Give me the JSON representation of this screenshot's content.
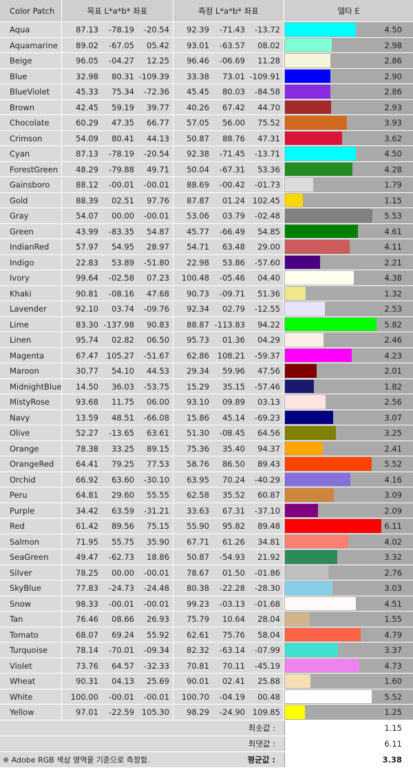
{
  "header": {
    "col_name": "Color Patch",
    "col_target": "목표 L*a*b* 좌표",
    "col_measured": "측정 L*a*b* 좌표",
    "col_delta": "델타 E"
  },
  "chart_data": {
    "type": "table",
    "x_max": 6.11,
    "rows": [
      {
        "name": "Aqua",
        "color": "#00FFFF",
        "target": [
          "87.13",
          "-78.19",
          "-20.54"
        ],
        "measured": [
          "92.39",
          "-71.43",
          "-13.72"
        ],
        "delta_e": 4.5,
        "delta_e_label": "4.50"
      },
      {
        "name": "Aquamarine",
        "color": "#7FFFD4",
        "target": [
          "89.02",
          "-67.05",
          "05.42"
        ],
        "measured": [
          "93.01",
          "-63.57",
          "08.02"
        ],
        "delta_e": 2.98,
        "delta_e_label": "2.98"
      },
      {
        "name": "Beige",
        "color": "#F5F5DC",
        "target": [
          "96.05",
          "-04.27",
          "12.25"
        ],
        "measured": [
          "96.46",
          "-06.69",
          "11.28"
        ],
        "delta_e": 2.86,
        "delta_e_label": "2.86"
      },
      {
        "name": "Blue",
        "color": "#0000FF",
        "target": [
          "32.98",
          "80.31",
          "-109.39"
        ],
        "measured": [
          "33.38",
          "73.01",
          "-109.91"
        ],
        "delta_e": 2.9,
        "delta_e_label": "2.90"
      },
      {
        "name": "BlueViolet",
        "color": "#8A2BE2",
        "target": [
          "45.33",
          "75.34",
          "-72.36"
        ],
        "measured": [
          "45.45",
          "80.03",
          "-84.58"
        ],
        "delta_e": 2.86,
        "delta_e_label": "2.86"
      },
      {
        "name": "Brown",
        "color": "#A52A2A",
        "target": [
          "42.45",
          "59.19",
          "39.77"
        ],
        "measured": [
          "40.26",
          "67.42",
          "44.70"
        ],
        "delta_e": 2.93,
        "delta_e_label": "2.93"
      },
      {
        "name": "Chocolate",
        "color": "#D2691E",
        "target": [
          "60.29",
          "47.35",
          "66.77"
        ],
        "measured": [
          "57.05",
          "56.00",
          "75.52"
        ],
        "delta_e": 3.93,
        "delta_e_label": "3.93"
      },
      {
        "name": "Crimson",
        "color": "#DC143C",
        "target": [
          "54.09",
          "80.41",
          "44.13"
        ],
        "measured": [
          "50.87",
          "88.76",
          "47.31"
        ],
        "delta_e": 3.62,
        "delta_e_label": "3.62"
      },
      {
        "name": "Cyan",
        "color": "#00FFFF",
        "target": [
          "87.13",
          "-78.19",
          "-20.54"
        ],
        "measured": [
          "92.38",
          "-71.45",
          "-13.71"
        ],
        "delta_e": 4.5,
        "delta_e_label": "4.50"
      },
      {
        "name": "ForestGreen",
        "color": "#228B22",
        "target": [
          "48.29",
          "-79.88",
          "49.71"
        ],
        "measured": [
          "50.04",
          "-67.31",
          "53.36"
        ],
        "delta_e": 4.28,
        "delta_e_label": "4.28"
      },
      {
        "name": "Gainsboro",
        "color": "#DCDCDC",
        "target": [
          "88.12",
          "-00.01",
          "-00.01"
        ],
        "measured": [
          "88.69",
          "-00.42",
          "-01.73"
        ],
        "delta_e": 1.79,
        "delta_e_label": "1.79"
      },
      {
        "name": "Gold",
        "color": "#FFD700",
        "target": [
          "88.39",
          "02.51",
          "97.76"
        ],
        "measured": [
          "87.87",
          "01.24",
          "102.45"
        ],
        "delta_e": 1.15,
        "delta_e_label": "1.15"
      },
      {
        "name": "Gray",
        "color": "#808080",
        "target": [
          "54.07",
          "00.00",
          "-00.01"
        ],
        "measured": [
          "53.06",
          "03.79",
          "-02.48"
        ],
        "delta_e": 5.53,
        "delta_e_label": "5.53"
      },
      {
        "name": "Green",
        "color": "#008000",
        "target": [
          "43.99",
          "-83.35",
          "54.87"
        ],
        "measured": [
          "45.77",
          "-66.49",
          "54.85"
        ],
        "delta_e": 4.61,
        "delta_e_label": "4.61"
      },
      {
        "name": "IndianRed",
        "color": "#CD5C5C",
        "target": [
          "57.97",
          "54.95",
          "28.97"
        ],
        "measured": [
          "54.71",
          "63.48",
          "29.00"
        ],
        "delta_e": 4.11,
        "delta_e_label": "4.11"
      },
      {
        "name": "Indigo",
        "color": "#4B0082",
        "target": [
          "22.83",
          "53.89",
          "-51.80"
        ],
        "measured": [
          "22.98",
          "53.86",
          "-57.60"
        ],
        "delta_e": 2.21,
        "delta_e_label": "2.21"
      },
      {
        "name": "Ivory",
        "color": "#FFFFF0",
        "target": [
          "99.64",
          "-02.58",
          "07.23"
        ],
        "measured": [
          "100.48",
          "-05.46",
          "04.40"
        ],
        "delta_e": 4.38,
        "delta_e_label": "4.38"
      },
      {
        "name": "Khaki",
        "color": "#F0E68C",
        "target": [
          "90.81",
          "-08.16",
          "47.68"
        ],
        "measured": [
          "90.73",
          "-09.71",
          "51.36"
        ],
        "delta_e": 1.32,
        "delta_e_label": "1.32"
      },
      {
        "name": "Lavender",
        "color": "#E6E6FA",
        "target": [
          "92.10",
          "03.74",
          "-09.76"
        ],
        "measured": [
          "92.34",
          "02.79",
          "-12.55"
        ],
        "delta_e": 2.53,
        "delta_e_label": "2.53"
      },
      {
        "name": "Lime",
        "color": "#00FF00",
        "target": [
          "83.30",
          "-137.98",
          "90.83"
        ],
        "measured": [
          "88.87",
          "-113.83",
          "94.22"
        ],
        "delta_e": 5.82,
        "delta_e_label": "5.82"
      },
      {
        "name": "Linen",
        "color": "#FAF0E6",
        "target": [
          "95.74",
          "02.82",
          "06.50"
        ],
        "measured": [
          "95.73",
          "01.36",
          "04.29"
        ],
        "delta_e": 2.46,
        "delta_e_label": "2.46"
      },
      {
        "name": "Magenta",
        "color": "#FF00FF",
        "target": [
          "67.47",
          "105.27",
          "-51.67"
        ],
        "measured": [
          "62.86",
          "108.21",
          "-59.37"
        ],
        "delta_e": 4.23,
        "delta_e_label": "4.23"
      },
      {
        "name": "Maroon",
        "color": "#800000",
        "target": [
          "30.77",
          "54.10",
          "44.53"
        ],
        "measured": [
          "29.34",
          "59.96",
          "47.56"
        ],
        "delta_e": 2.01,
        "delta_e_label": "2.01"
      },
      {
        "name": "MidnightBlue",
        "color": "#191970",
        "target": [
          "14.50",
          "36.03",
          "-53.75"
        ],
        "measured": [
          "15.29",
          "35.15",
          "-57.46"
        ],
        "delta_e": 1.82,
        "delta_e_label": "1.82"
      },
      {
        "name": "MistyRose",
        "color": "#FFE4E1",
        "target": [
          "93.68",
          "11.75",
          "06.00"
        ],
        "measured": [
          "93.10",
          "09.89",
          "03.13"
        ],
        "delta_e": 2.56,
        "delta_e_label": "2.56"
      },
      {
        "name": "Navy",
        "color": "#000080",
        "target": [
          "13.59",
          "48.51",
          "-66.08"
        ],
        "measured": [
          "15.86",
          "45.14",
          "-69.23"
        ],
        "delta_e": 3.07,
        "delta_e_label": "3.07"
      },
      {
        "name": "Olive",
        "color": "#808000",
        "target": [
          "52.27",
          "-13.65",
          "63.61"
        ],
        "measured": [
          "51.30",
          "-08.45",
          "64.56"
        ],
        "delta_e": 3.25,
        "delta_e_label": "3.25"
      },
      {
        "name": "Orange",
        "color": "#FFA500",
        "target": [
          "78.38",
          "33.25",
          "89.15"
        ],
        "measured": [
          "75.36",
          "35.40",
          "94.37"
        ],
        "delta_e": 2.41,
        "delta_e_label": "2.41"
      },
      {
        "name": "OrangeRed",
        "color": "#FF4500",
        "target": [
          "64.41",
          "79.25",
          "77.53"
        ],
        "measured": [
          "58.76",
          "86.50",
          "89.43"
        ],
        "delta_e": 5.52,
        "delta_e_label": "5.52"
      },
      {
        "name": "Orchid",
        "color": "#8470D8",
        "target": [
          "66.92",
          "63.60",
          "-30.10"
        ],
        "measured": [
          "63.95",
          "70.24",
          "-40.29"
        ],
        "delta_e": 4.16,
        "delta_e_label": "4.16"
      },
      {
        "name": "Peru",
        "color": "#CD853F",
        "target": [
          "64.81",
          "29.60",
          "55.55"
        ],
        "measured": [
          "62.58",
          "35.52",
          "60.87"
        ],
        "delta_e": 3.09,
        "delta_e_label": "3.09"
      },
      {
        "name": "Purple",
        "color": "#800080",
        "target": [
          "34.42",
          "63.59",
          "-31.21"
        ],
        "measured": [
          "33.63",
          "67.31",
          "-37.10"
        ],
        "delta_e": 2.09,
        "delta_e_label": "2.09"
      },
      {
        "name": "Red",
        "color": "#FF0000",
        "target": [
          "61.42",
          "89.56",
          "75.15"
        ],
        "measured": [
          "55.90",
          "95.82",
          "89.48"
        ],
        "delta_e": 6.11,
        "delta_e_label": "6.11"
      },
      {
        "name": "Salmon",
        "color": "#FA8072",
        "target": [
          "71.95",
          "55.75",
          "35.90"
        ],
        "measured": [
          "67.71",
          "61.26",
          "34.81"
        ],
        "delta_e": 4.02,
        "delta_e_label": "4.02"
      },
      {
        "name": "SeaGreen",
        "color": "#2E8B57",
        "target": [
          "49.47",
          "-62.73",
          "18.86"
        ],
        "measured": [
          "50.87",
          "-54.93",
          "21.92"
        ],
        "delta_e": 3.32,
        "delta_e_label": "3.32"
      },
      {
        "name": "Silver",
        "color": "#C0C0C0",
        "target": [
          "78.25",
          "00.00",
          "-00.01"
        ],
        "measured": [
          "78.67",
          "01.50",
          "-01.86"
        ],
        "delta_e": 2.76,
        "delta_e_label": "2.76"
      },
      {
        "name": "SkyBlue",
        "color": "#87CEEB",
        "target": [
          "77.83",
          "-24.73",
          "-24.48"
        ],
        "measured": [
          "80.38",
          "-22.28",
          "-28.30"
        ],
        "delta_e": 3.03,
        "delta_e_label": "3.03"
      },
      {
        "name": "Snow",
        "color": "#FFFAFA",
        "target": [
          "98.33",
          "-00.01",
          "-00.01"
        ],
        "measured": [
          "99.23",
          "-03.13",
          "-01.68"
        ],
        "delta_e": 4.51,
        "delta_e_label": "4.51"
      },
      {
        "name": "Tan",
        "color": "#D2B48C",
        "target": [
          "76.46",
          "08.66",
          "26.93"
        ],
        "measured": [
          "75.79",
          "10.64",
          "28.04"
        ],
        "delta_e": 1.55,
        "delta_e_label": "1.55"
      },
      {
        "name": "Tomato",
        "color": "#FF6347",
        "target": [
          "68.07",
          "69.24",
          "55.92"
        ],
        "measured": [
          "62.61",
          "75.76",
          "58.04"
        ],
        "delta_e": 4.79,
        "delta_e_label": "4.79"
      },
      {
        "name": "Turquoise",
        "color": "#40E0D0",
        "target": [
          "78.14",
          "-70.01",
          "-09.34"
        ],
        "measured": [
          "82.32",
          "-63.14",
          "-07.99"
        ],
        "delta_e": 3.37,
        "delta_e_label": "3.37"
      },
      {
        "name": "Violet",
        "color": "#EE82EE",
        "target": [
          "73.76",
          "64.57",
          "-32.33"
        ],
        "measured": [
          "70.81",
          "70.11",
          "-45.19"
        ],
        "delta_e": 4.73,
        "delta_e_label": "4.73"
      },
      {
        "name": "Wheat",
        "color": "#F5DEB3",
        "target": [
          "90.31",
          "04.13",
          "25.69"
        ],
        "measured": [
          "90.01",
          "02.41",
          "25.88"
        ],
        "delta_e": 1.6,
        "delta_e_label": "1.60"
      },
      {
        "name": "White",
        "color": "#FFFFFF",
        "target": [
          "100.00",
          "-00.01",
          "-00.01"
        ],
        "measured": [
          "100.70",
          "-04.19",
          "00.48"
        ],
        "delta_e": 5.52,
        "delta_e_label": "5.52"
      },
      {
        "name": "Yellow",
        "color": "#FFFF00",
        "target": [
          "97.01",
          "-22.59",
          "105.30"
        ],
        "measured": [
          "98.29",
          "-24.90",
          "109.85"
        ],
        "delta_e": 1.25,
        "delta_e_label": "1.25"
      }
    ]
  },
  "summary": {
    "min_label": "최솟값 :",
    "min_value": "1.15",
    "max_label": "최댓값 :",
    "max_value": "6.11",
    "avg_label": "평균값 :",
    "avg_value": "3.38",
    "note": "※ Adobe RGB 색상 영역을 기준으로 측정함."
  }
}
